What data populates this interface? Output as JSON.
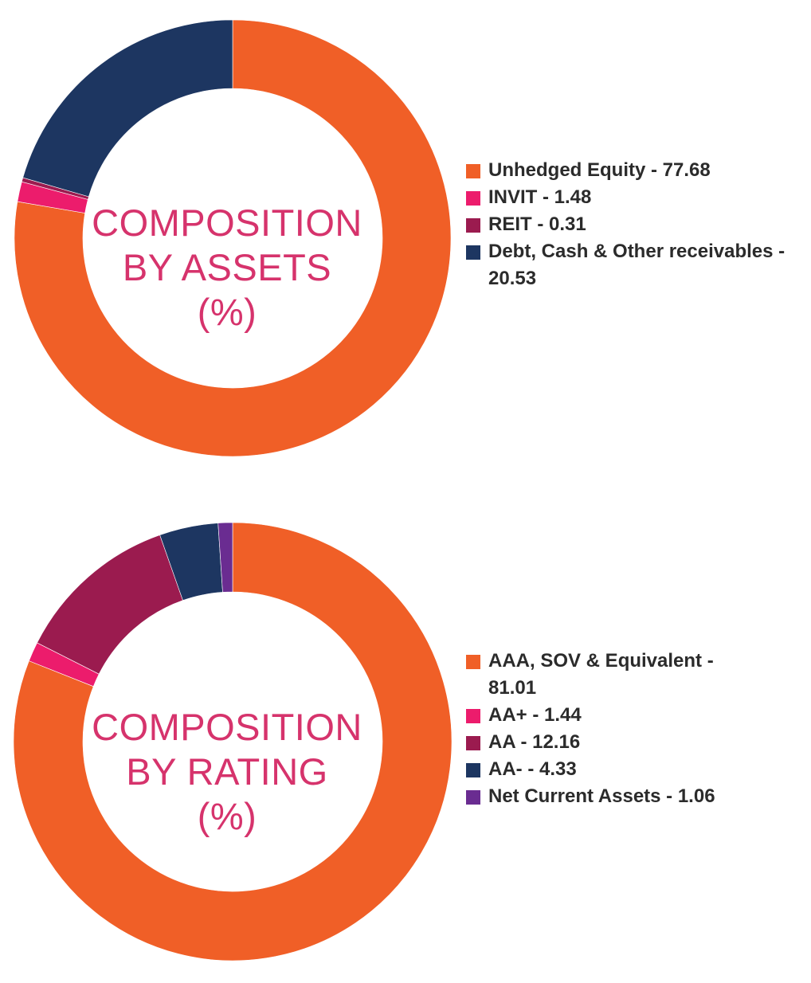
{
  "chart_data": [
    {
      "type": "pie",
      "title": "COMPOSITION BY ASSETS (%)",
      "title_lines": [
        "COMPOSITION",
        "BY ASSETS",
        "(%)"
      ],
      "categories": [
        "Unhedged Equity",
        "INVIT",
        "REIT",
        "Debt, Cash & Other receivables"
      ],
      "values": [
        77.68,
        1.48,
        0.31,
        20.53
      ],
      "colors": [
        "#f05f27",
        "#ec1c6c",
        "#9b1b4f",
        "#1d3661"
      ],
      "legend_labels": [
        "Unhedged Equity - 77.68",
        "INVIT - 1.48",
        "REIT - 0.31",
        "Debt, Cash & Other receivables - 20.53"
      ],
      "legend_position": "right"
    },
    {
      "type": "pie",
      "title": "COMPOSITION BY RATING (%)",
      "title_lines": [
        "COMPOSITION",
        "BY RATING",
        "(%)"
      ],
      "categories": [
        "AAA, SOV & Equivalent",
        "AA+",
        "AA",
        "AA-",
        "Net Current Assets"
      ],
      "values": [
        81.01,
        1.44,
        12.16,
        4.33,
        1.06
      ],
      "colors": [
        "#f05f27",
        "#ec1c6c",
        "#9b1b4f",
        "#1d3661",
        "#6a2c91"
      ],
      "legend_labels": [
        "AAA, SOV & Equivalent - 81.01",
        "AA+ - 1.44",
        "AA - 12.16",
        "AA- - 4.33",
        "Net Current Assets - 1.06"
      ],
      "legend_position": "right"
    }
  ]
}
